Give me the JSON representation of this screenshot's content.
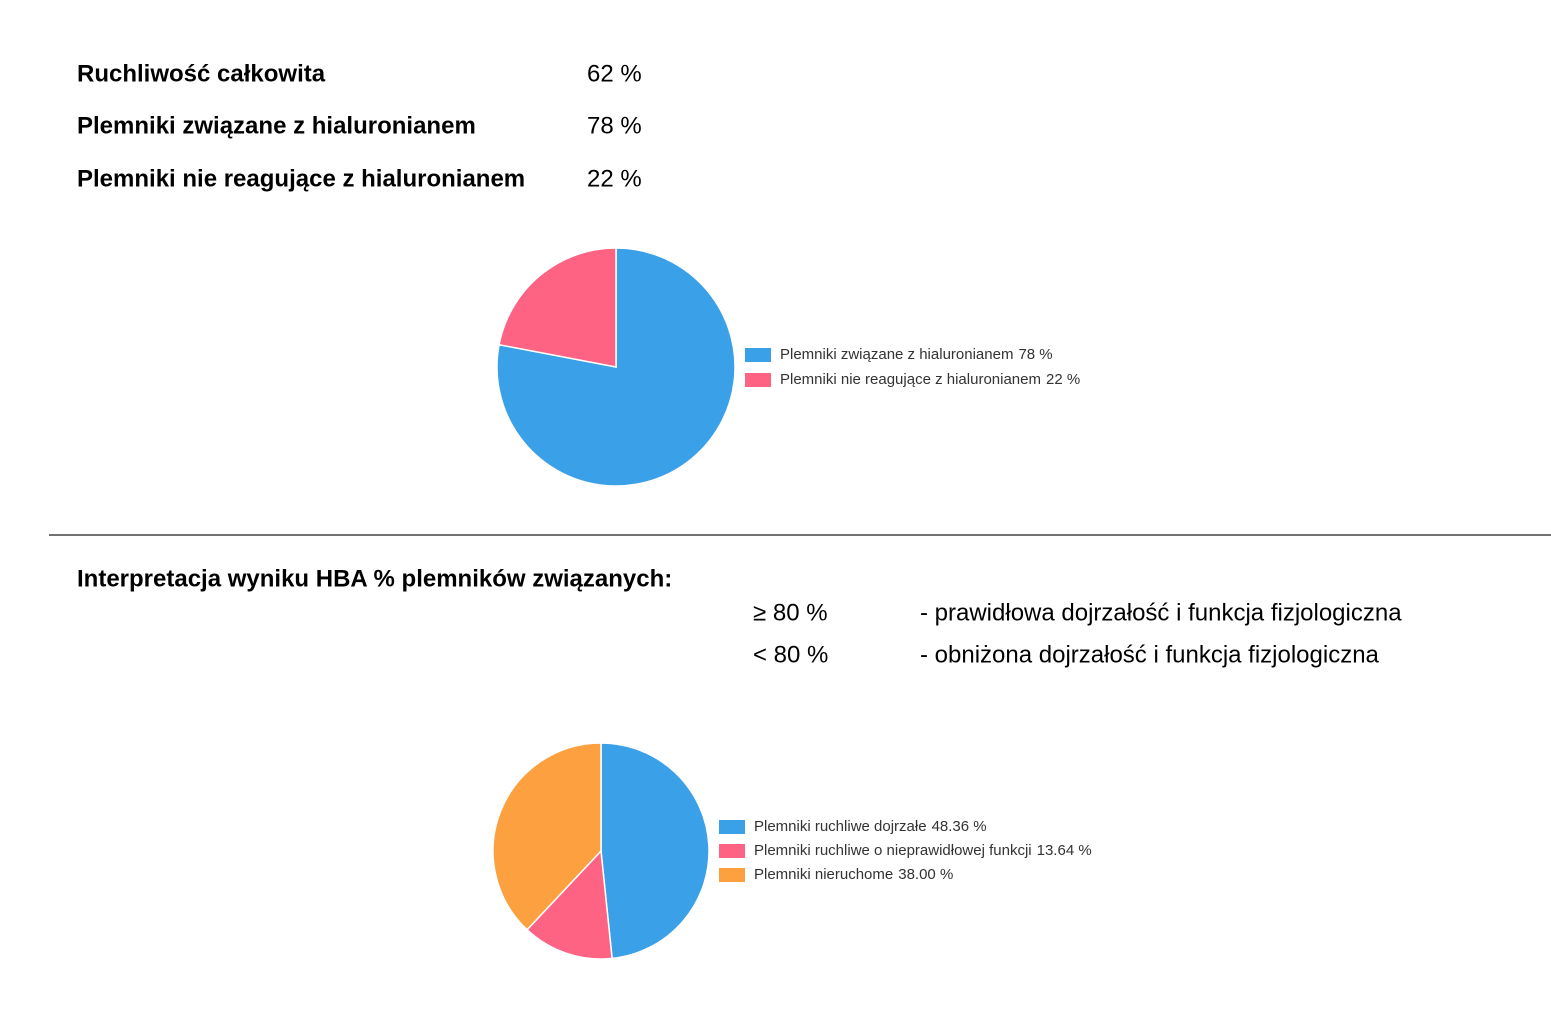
{
  "summary": {
    "rows": [
      [
        "Ruchliwość całkowita",
        "62 %"
      ],
      [
        "Plemniki związane z hialuronianem",
        "78 %"
      ],
      [
        "Plemniki nie reagujące z hialuronianem",
        "22 %"
      ]
    ]
  },
  "interpretation": {
    "title": "Interpretacja wyniku HBA % plemników związanych:",
    "rows": [
      [
        "≥ 80 %",
        "- prawidłowa dojrzałość i funkcja fizjologiczna"
      ],
      [
        "< 80 %",
        "- obniżona dojrzałość i funkcja fizjologiczna"
      ]
    ]
  },
  "chart_data": [
    {
      "type": "pie",
      "categories": [
        "Plemniki związane z hialuronianem",
        "Plemniki nie reagujące z hialuronianem"
      ],
      "values": [
        78,
        22
      ],
      "value_labels": [
        "78 %",
        "22 %"
      ],
      "colors": [
        "#3aa0e8",
        "#fe6384"
      ]
    },
    {
      "type": "pie",
      "categories": [
        "Plemniki ruchliwe dojrzałe",
        "Plemniki ruchliwe o nieprawidłowej funkcji",
        "Plemniki nieruchome"
      ],
      "values": [
        48.36,
        13.64,
        38.0
      ],
      "value_labels": [
        "48.36 %",
        "13.64 %",
        "38.00 %"
      ],
      "colors": [
        "#3aa0e8",
        "#fe6384",
        "#fda040"
      ]
    }
  ]
}
